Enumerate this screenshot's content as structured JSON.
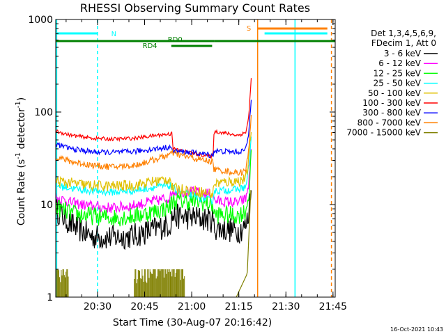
{
  "chart_data": {
    "type": "line",
    "title": "RHESSI Observing Summary Count Rates",
    "xlabel": "Start Time (30-Aug-07 20:16:42)",
    "ylabel_main": "Count Rate (s",
    "ylabel_sup1": "-1",
    "ylabel_mid": " detector",
    "ylabel_sup2": "-1",
    "ylabel_end": ")",
    "yscale": "log",
    "ylim": [
      1,
      1000
    ],
    "x_unit": "minutes since 20:16:42",
    "xlim": [
      0,
      89
    ],
    "x_ticks": [
      {
        "value": 13.3,
        "label": "20:30"
      },
      {
        "value": 28.3,
        "label": "20:45"
      },
      {
        "value": 43.3,
        "label": "21:00"
      },
      {
        "value": 58.3,
        "label": "21:15"
      },
      {
        "value": 73.3,
        "label": "21:30"
      },
      {
        "value": 88.3,
        "label": "21:45"
      }
    ],
    "y_ticks": [
      {
        "value": 1,
        "label": "1"
      },
      {
        "value": 10,
        "label": "10"
      },
      {
        "value": 100,
        "label": "100"
      },
      {
        "value": 1000,
        "label": "1000"
      }
    ],
    "legend": {
      "header": [
        "Det 1,3,4,5,6,9,",
        "FDecim 1, Att 0"
      ],
      "placement": "right"
    },
    "series": [
      {
        "name": "3 - 6 keV",
        "color": "#000000",
        "noise": 0.14,
        "points": [
          [
            0,
            9
          ],
          [
            5,
            6
          ],
          [
            12,
            4.5
          ],
          [
            18,
            4.4
          ],
          [
            25,
            4.6
          ],
          [
            32,
            5.5
          ],
          [
            36.6,
            6.2
          ],
          [
            37,
            7.5
          ],
          [
            45,
            7.2
          ],
          [
            50.1,
            6.8
          ],
          [
            50.4,
            5.6
          ],
          [
            58,
            5.2
          ],
          [
            60.5,
            5.8
          ],
          [
            61.5,
            8
          ],
          [
            62.3,
            20
          ]
        ]
      },
      {
        "name": "6 - 12 keV",
        "color": "#ff00ff",
        "noise": 0.06,
        "points": [
          [
            0,
            12
          ],
          [
            5,
            10.5
          ],
          [
            12,
            9.5
          ],
          [
            18,
            9.2
          ],
          [
            25,
            9.8
          ],
          [
            32,
            11
          ],
          [
            36.6,
            12
          ],
          [
            37,
            14
          ],
          [
            45,
            13.5
          ],
          [
            50.1,
            13
          ],
          [
            50.4,
            11
          ],
          [
            58,
            10.5
          ],
          [
            60.5,
            11.5
          ],
          [
            61.5,
            17
          ],
          [
            62.3,
            45
          ]
        ]
      },
      {
        "name": "12 - 25 keV",
        "color": "#00ff00",
        "noise": 0.1,
        "points": [
          [
            0,
            9.5
          ],
          [
            5,
            8
          ],
          [
            12,
            7.5
          ],
          [
            18,
            7.2
          ],
          [
            25,
            7.5
          ],
          [
            32,
            8.5
          ],
          [
            36.6,
            9.5
          ],
          [
            37,
            11
          ],
          [
            45,
            10.8
          ],
          [
            50.1,
            10
          ],
          [
            50.4,
            7.8
          ],
          [
            58,
            7.6
          ],
          [
            60.5,
            8.5
          ],
          [
            61.5,
            13
          ],
          [
            62.3,
            35
          ]
        ]
      },
      {
        "name": "25 - 50 keV",
        "color": "#00ffff",
        "noise": 0.04,
        "points": [
          [
            0,
            16
          ],
          [
            5,
            15
          ],
          [
            12,
            14
          ],
          [
            18,
            13.6
          ],
          [
            25,
            14.2
          ],
          [
            32,
            15.5
          ],
          [
            36.6,
            16
          ],
          [
            37,
            15
          ],
          [
            45,
            12
          ],
          [
            50.1,
            11
          ],
          [
            50.4,
            14
          ],
          [
            58,
            14.6
          ],
          [
            60.5,
            15.5
          ],
          [
            61.5,
            25
          ],
          [
            62.3,
            55
          ]
        ]
      },
      {
        "name": "50 - 100 keV",
        "color": "#e0c000",
        "noise": 0.06,
        "points": [
          [
            0,
            18
          ],
          [
            5,
            17
          ],
          [
            12,
            16
          ],
          [
            18,
            15.8
          ],
          [
            25,
            16.2
          ],
          [
            32,
            18
          ],
          [
            36.6,
            19
          ],
          [
            37,
            15
          ],
          [
            45,
            14
          ],
          [
            50.1,
            13
          ],
          [
            50.4,
            17
          ],
          [
            58,
            18
          ],
          [
            60.5,
            19
          ],
          [
            61.5,
            30
          ],
          [
            62.3,
            70
          ]
        ]
      },
      {
        "name": "100 - 300 keV",
        "color": "#ff0000",
        "noise": 0.02,
        "points": [
          [
            0,
            62
          ],
          [
            5,
            56
          ],
          [
            12,
            52
          ],
          [
            18,
            51
          ],
          [
            25,
            52
          ],
          [
            32,
            56
          ],
          [
            36.6,
            58
          ],
          [
            37,
            62
          ],
          [
            37.4,
            40
          ],
          [
            45,
            35
          ],
          [
            50.1,
            33
          ],
          [
            50.4,
            62
          ],
          [
            58,
            56
          ],
          [
            60.5,
            60
          ],
          [
            61.5,
            90
          ],
          [
            62.3,
            240
          ]
        ]
      },
      {
        "name": "300 - 800 keV",
        "color": "#0000ff",
        "noise": 0.03,
        "points": [
          [
            0,
            45
          ],
          [
            5,
            40
          ],
          [
            12,
            37
          ],
          [
            18,
            36.5
          ],
          [
            25,
            37.5
          ],
          [
            32,
            40
          ],
          [
            36.6,
            42
          ],
          [
            37,
            38
          ],
          [
            45,
            36
          ],
          [
            50.1,
            34
          ],
          [
            50.4,
            38
          ],
          [
            58,
            37
          ],
          [
            60.5,
            39
          ],
          [
            61.5,
            60
          ],
          [
            62.3,
            150
          ]
        ]
      },
      {
        "name": "800 - 7000 keV",
        "color": "#ff8000",
        "noise": 0.035,
        "points": [
          [
            0,
            33
          ],
          [
            5,
            29
          ],
          [
            12,
            26.5
          ],
          [
            18,
            25.5
          ],
          [
            25,
            26.5
          ],
          [
            32,
            31
          ],
          [
            36.6,
            35
          ],
          [
            37,
            36
          ],
          [
            45,
            31
          ],
          [
            50.1,
            29
          ],
          [
            50.4,
            24
          ],
          [
            58,
            22
          ],
          [
            60.5,
            23
          ],
          [
            61.5,
            40
          ],
          [
            62.3,
            100
          ]
        ]
      },
      {
        "name": "7000 - 15000 keV",
        "color": "#808000",
        "noise": 0,
        "points": [
          [
            57.5,
            1
          ],
          [
            61,
            1.8
          ],
          [
            62.3,
            20
          ]
        ],
        "comb": [
          [
            0,
            4
          ],
          [
            25,
            41
          ]
        ]
      }
    ],
    "flags": {
      "top_lines": [
        {
          "label": "N",
          "color": "#00ffff",
          "ranges": [
            [
              0,
              13.3
            ],
            [
              66.5,
              86.5
            ]
          ],
          "level": 1
        },
        {
          "label": "S",
          "color": "#ff8000",
          "ranges": [
            [
              64.3,
              86.5
            ]
          ],
          "level": 2
        },
        {
          "label": "RD0",
          "color": "#008000",
          "ranges": [
            [
              0,
              50.4
            ],
            [
              50.4,
              89
            ]
          ],
          "level": 3,
          "label_at": 38
        },
        {
          "label": "RD4",
          "color": "#008000",
          "ranges": [
            [
              36.8,
              49.8
            ]
          ],
          "level": 4,
          "label_at": 30
        }
      ],
      "vlines": [
        {
          "x": 13.3,
          "color": "#00ffff",
          "dash": true
        },
        {
          "x": 64.3,
          "color": "#ff8000",
          "dash": false
        },
        {
          "x": 76.2,
          "color": "#00ffff",
          "dash": false
        },
        {
          "x": 87.8,
          "color": "#ff8000",
          "dash": true
        },
        {
          "x": 0.3,
          "color": "#00ffff",
          "dash": false
        }
      ]
    }
  },
  "timestamp": "16-Oct-2021 10:43"
}
